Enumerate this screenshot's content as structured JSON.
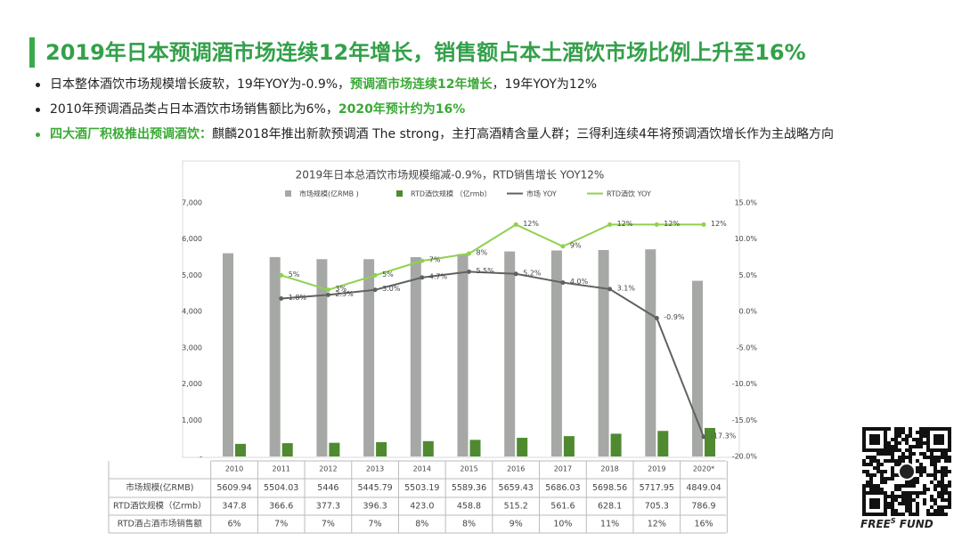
{
  "header": {
    "title": "2019年日本预调酒市场连续12年增长，销售额占本土酒饮市场比例上升至16%"
  },
  "bullets": [
    {
      "segments": [
        {
          "text": "日本整体酒饮市场规模增长疲软，19年YOY为-0.9%，",
          "highlight": false
        },
        {
          "text": "预调酒市场连续12年增长",
          "highlight": true
        },
        {
          "text": "，19年YOY为12%",
          "highlight": false
        }
      ]
    },
    {
      "segments": [
        {
          "text": "2010年预调酒品类占日本酒饮市场销售额比为6%，",
          "highlight": false
        },
        {
          "text": "2020年预计约为16%",
          "highlight": true
        }
      ]
    },
    {
      "segments": [
        {
          "text": "四大酒厂积极推出预调酒饮：",
          "highlight": true
        },
        {
          "text": "麒麟2018年推出新款预调酒 The strong，主打高酒精含量人群；三得利连续4年将预调酒饮增长作为主战略方向",
          "highlight": false
        }
      ]
    }
  ],
  "logo": {
    "brand": "FREE",
    "mark": "S",
    "suffix": "FUND"
  },
  "chart_data": {
    "type": "combo",
    "title": "2019年日本总酒饮市场规模缩减-0.9%，RTD销售增长 YOY12%",
    "categories": [
      "2010",
      "2011",
      "2012",
      "2013",
      "2014",
      "2015",
      "2016",
      "2017",
      "2018",
      "2019",
      "2020*"
    ],
    "series": [
      {
        "name": "市场规模(亿RMB )",
        "row_label": "市场规模(亿RMB)",
        "type": "bar",
        "color": "#a6a8a5",
        "values": [
          5609.94,
          5504.03,
          5446,
          5445.79,
          5503.19,
          5589.36,
          5659.43,
          5686.03,
          5698.56,
          5717.95,
          4849.04
        ]
      },
      {
        "name": "RTD酒饮规模 （亿rmb）",
        "row_label": "RTD酒饮规模（亿rmb）",
        "type": "bar",
        "color": "#4f8a30",
        "values": [
          347.8,
          366.6,
          377.3,
          396.3,
          423,
          458.8,
          515.2,
          561.6,
          628.1,
          705.3,
          786.9
        ],
        "value_labels": [
          "347.8",
          "366.6",
          "377.3",
          "396.3",
          "423.0",
          "458.8",
          "515.2",
          "561.6",
          "628.1",
          "705.3",
          "786.9"
        ]
      },
      {
        "name": "市场 YOY",
        "type": "line",
        "axis": "y2",
        "color": "#5f6360",
        "values": [
          null,
          1.8,
          2.3,
          3.0,
          4.7,
          5.5,
          5.2,
          4.0,
          3.1,
          -0.9,
          -17.3
        ],
        "value_labels": [
          null,
          "1.8%",
          "2.3%",
          "3.0%",
          "4.7%",
          "5.5%",
          "5.2%",
          "4.0%",
          "3.1%",
          "-0.9%",
          "-17.3%"
        ]
      },
      {
        "name": "RTD酒饮 YOY",
        "type": "line",
        "axis": "y2",
        "color": "#8fd14f",
        "values": [
          null,
          5,
          3,
          5,
          7,
          8,
          12,
          9,
          12,
          12,
          12
        ],
        "value_labels": [
          null,
          "5%",
          "3%",
          "5%",
          "7%",
          "8%",
          "12%",
          "9%",
          "12%",
          "12%",
          "12%"
        ]
      }
    ],
    "share": {
      "name": "RTD酒占酒市场销售额",
      "values": [
        6,
        7,
        7,
        7,
        8,
        8,
        9,
        10,
        11,
        12,
        16
      ],
      "value_labels": [
        "6%",
        "7%",
        "7%",
        "7%",
        "8%",
        "8%",
        "9%",
        "10%",
        "11%",
        "12%",
        "16%"
      ]
    },
    "ylim": [
      0,
      7000
    ],
    "yticks": [
      {
        "value": 0,
        "label": "-"
      },
      {
        "value": 1000,
        "label": "1,000"
      },
      {
        "value": 2000,
        "label": "2,000"
      },
      {
        "value": 3000,
        "label": "3,000"
      },
      {
        "value": 4000,
        "label": "4,000"
      },
      {
        "value": 5000,
        "label": "5,000"
      },
      {
        "value": 6000,
        "label": "6,000"
      },
      {
        "value": 7000,
        "label": "7,000"
      }
    ],
    "y2lim": [
      -20,
      15
    ],
    "y2ticks": [
      {
        "value": -20,
        "label": "-20.0%"
      },
      {
        "value": -15,
        "label": "-15.0%"
      },
      {
        "value": -10,
        "label": "-10.0%"
      },
      {
        "value": -5,
        "label": "-5.0%"
      },
      {
        "value": 0,
        "label": "0.0%"
      },
      {
        "value": 5,
        "label": "5.0%"
      },
      {
        "value": 10,
        "label": "10.0%"
      },
      {
        "value": 15,
        "label": "15.0%"
      }
    ]
  }
}
